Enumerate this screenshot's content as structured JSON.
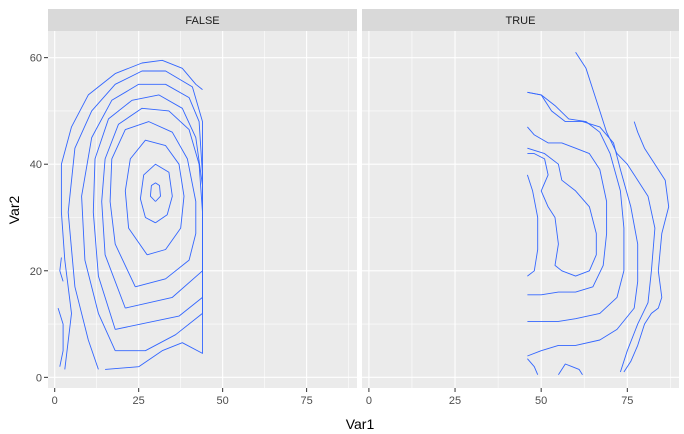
{
  "chart_data": {
    "type": "contour",
    "xlabel": "Var1",
    "ylabel": "Var2",
    "xlim": [
      -2,
      90
    ],
    "ylim": [
      -2,
      65
    ],
    "x_ticks": [
      0,
      25,
      50,
      75
    ],
    "y_ticks": [
      0,
      20,
      40,
      60
    ],
    "grid": true,
    "line_color": "#3366FF",
    "panel_background": "#EBEBEB",
    "strip_background": "#D9D9D9",
    "facets": [
      {
        "label": "FALSE",
        "contours": [
          [
            [
              30,
              33
            ],
            [
              31.5,
              34
            ],
            [
              31.2,
              36
            ],
            [
              30,
              36.5
            ],
            [
              28.8,
              36
            ],
            [
              28.5,
              34
            ],
            [
              30,
              33
            ]
          ],
          [
            [
              30,
              29
            ],
            [
              33.5,
              30.5
            ],
            [
              35,
              34
            ],
            [
              34,
              38.5
            ],
            [
              30,
              40
            ],
            [
              26.5,
              38
            ],
            [
              25.5,
              33.5
            ],
            [
              27,
              30
            ],
            [
              30,
              29
            ]
          ],
          [
            [
              27.5,
              23
            ],
            [
              33,
              24
            ],
            [
              37.5,
              28
            ],
            [
              38.5,
              34
            ],
            [
              37,
              40
            ],
            [
              33,
              43.5
            ],
            [
              27,
              44.5
            ],
            [
              22.5,
              41
            ],
            [
              21,
              35
            ],
            [
              22,
              28
            ],
            [
              27.5,
              23
            ]
          ],
          [
            [
              24,
              17
            ],
            [
              33,
              18.5
            ],
            [
              40,
              22
            ],
            [
              42,
              27
            ],
            [
              42,
              33
            ],
            [
              39.5,
              41
            ],
            [
              35,
              46
            ],
            [
              28,
              48
            ],
            [
              21,
              46.5
            ],
            [
              17,
              41
            ],
            [
              16.5,
              33
            ],
            [
              18,
              25
            ],
            [
              24,
              17
            ]
          ],
          [
            [
              21,
              13
            ],
            [
              35,
              15
            ],
            [
              44,
              20
            ],
            [
              44,
              31
            ],
            [
              43,
              40
            ],
            [
              40,
              46.5
            ],
            [
              34,
              50
            ],
            [
              26,
              50.5
            ],
            [
              19,
              47.5
            ],
            [
              15,
              41
            ],
            [
              14,
              33
            ],
            [
              15,
              23
            ],
            [
              21,
              13
            ]
          ],
          [
            [
              18,
              9
            ],
            [
              37,
              11.5
            ],
            [
              44,
              15
            ],
            [
              44,
              26
            ],
            [
              44,
              36
            ],
            [
              42,
              45
            ],
            [
              38,
              50.5
            ],
            [
              31,
              53
            ],
            [
              23,
              52
            ],
            [
              16,
              48.5
            ],
            [
              12,
              41
            ],
            [
              11.5,
              31
            ],
            [
              13,
              19
            ],
            [
              18,
              9
            ]
          ],
          [
            [
              18,
              5
            ],
            [
              27,
              5
            ],
            [
              36,
              8
            ],
            [
              44,
              12
            ],
            [
              44,
              23
            ],
            [
              44,
              38
            ],
            [
              43,
              48
            ],
            [
              40,
              52.5
            ],
            [
              33,
              55
            ],
            [
              25,
              55
            ],
            [
              17,
              52
            ],
            [
              11,
              45
            ],
            [
              8,
              34
            ],
            [
              9,
              22
            ],
            [
              13,
              12
            ],
            [
              18,
              5
            ]
          ],
          [
            [
              15,
              1.5
            ],
            [
              25,
              2
            ],
            [
              32,
              5
            ],
            [
              38,
              6.5
            ],
            [
              44,
              4.5
            ],
            [
              44,
              20
            ],
            [
              44,
              40
            ],
            [
              44,
              48
            ],
            [
              41,
              54.5
            ],
            [
              33,
              57.5
            ],
            [
              26,
              57.5
            ],
            [
              18,
              55
            ],
            [
              11,
              50
            ],
            [
              6,
              43
            ],
            [
              4,
              31
            ],
            [
              6,
              17
            ],
            [
              10,
              7
            ],
            [
              13,
              1.5
            ]
          ],
          [
            [
              3,
              1.5
            ],
            [
              5,
              12
            ],
            [
              3,
              22
            ],
            [
              2,
              31
            ],
            [
              2,
              40
            ],
            [
              5,
              47
            ],
            [
              10,
              53
            ],
            [
              18,
              57
            ],
            [
              26,
              59
            ],
            [
              32,
              59.5
            ],
            [
              38,
              58
            ],
            [
              42,
              55
            ],
            [
              44,
              54
            ]
          ],
          [
            [
              2,
              22.5
            ],
            [
              1.5,
              20
            ],
            [
              2.5,
              18
            ]
          ],
          [
            [
              1,
              13
            ],
            [
              2.5,
              10
            ],
            [
              2.5,
              5
            ],
            [
              1.5,
              2
            ]
          ]
        ]
      },
      {
        "label": "TRUE",
        "contours": [
          [
            [
              46,
              38
            ],
            [
              47.5,
              35
            ],
            [
              49,
              30
            ],
            [
              49,
              24
            ],
            [
              48,
              20
            ],
            [
              46,
              19
            ]
          ],
          [
            [
              46,
              42
            ],
            [
              48,
              42
            ],
            [
              51,
              41
            ],
            [
              52,
              38
            ],
            [
              50,
              35
            ],
            [
              52,
              32
            ],
            [
              54,
              30
            ],
            [
              55,
              25
            ],
            [
              54,
              21
            ],
            [
              56,
              20
            ],
            [
              60,
              19
            ],
            [
              64,
              20
            ],
            [
              66,
              23
            ],
            [
              66,
              27
            ],
            [
              64,
              32
            ],
            [
              60,
              35
            ],
            [
              56,
              37
            ],
            [
              55,
              40
            ],
            [
              51,
              42
            ],
            [
              46,
              43
            ]
          ],
          [
            [
              46,
              47
            ],
            [
              48,
              45.5
            ],
            [
              52,
              44
            ],
            [
              56,
              44
            ],
            [
              60,
              43
            ],
            [
              64,
              42
            ],
            [
              67,
              39
            ],
            [
              69,
              33
            ],
            [
              69,
              27
            ],
            [
              68,
              21
            ],
            [
              65,
              17
            ],
            [
              60,
              16
            ],
            [
              55,
              16
            ],
            [
              50,
              15.5
            ],
            [
              46,
              15.5
            ]
          ],
          [
            [
              46,
              53.5
            ],
            [
              50,
              53
            ],
            [
              54,
              51
            ],
            [
              58,
              48.5
            ],
            [
              63,
              48
            ],
            [
              67,
              46
            ],
            [
              70,
              42
            ],
            [
              73,
              35
            ],
            [
              74,
              28
            ],
            [
              74,
              20
            ],
            [
              72,
              15
            ],
            [
              67,
              12
            ],
            [
              60,
              11
            ],
            [
              55,
              10.5
            ],
            [
              48,
              10.5
            ],
            [
              46,
              10.5
            ]
          ],
          [
            [
              46,
              53.5
            ],
            [
              50,
              53
            ],
            [
              53,
              50
            ],
            [
              57,
              48
            ],
            [
              62,
              48
            ],
            [
              67,
              47
            ],
            [
              71,
              44
            ],
            [
              73,
              39
            ],
            [
              76,
              32
            ],
            [
              78,
              25
            ],
            [
              78,
              18
            ],
            [
              77,
              13
            ],
            [
              72,
              9
            ],
            [
              67,
              7
            ],
            [
              60,
              6
            ],
            [
              55,
              6
            ],
            [
              50,
              5
            ],
            [
              46,
              4
            ]
          ],
          [
            [
              60,
              61
            ],
            [
              63,
              58
            ],
            [
              65,
              54
            ],
            [
              67,
              50
            ],
            [
              69,
              46
            ],
            [
              72,
              42
            ],
            [
              75,
              40
            ],
            [
              78,
              37
            ],
            [
              81,
              34
            ],
            [
              83,
              28
            ],
            [
              82,
              20
            ],
            [
              81,
              14
            ],
            [
              78,
              10
            ],
            [
              75,
              5
            ],
            [
              73,
              1
            ]
          ],
          [
            [
              46,
              3.5
            ],
            [
              48,
              2
            ],
            [
              49,
              0.5
            ]
          ],
          [
            [
              55,
              0.5
            ],
            [
              57,
              2.5
            ],
            [
              59,
              2
            ],
            [
              61,
              1.5
            ],
            [
              62,
              0.5
            ]
          ],
          [
            [
              74,
              1
            ],
            [
              76,
              3
            ],
            [
              78,
              6
            ],
            [
              80,
              10
            ],
            [
              82,
              12
            ],
            [
              84,
              13
            ],
            [
              85,
              15
            ],
            [
              84,
              20
            ],
            [
              85,
              27
            ],
            [
              87,
              32
            ],
            [
              86,
              37
            ],
            [
              83,
              40
            ],
            [
              80,
              43
            ],
            [
              78,
              46
            ],
            [
              77,
              48
            ]
          ]
        ]
      }
    ]
  }
}
